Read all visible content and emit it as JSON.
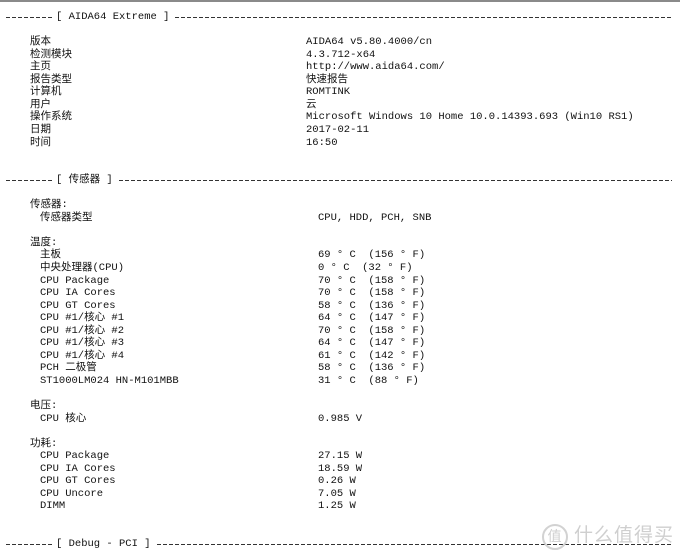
{
  "sections": [
    {
      "title": "[ AIDA64 Extreme ]",
      "row_start": 2,
      "rows": [
        {
          "label": "版本",
          "value": "AIDA64 v5.80.4000/cn"
        },
        {
          "label": "检测模块",
          "value": "4.3.712-x64"
        },
        {
          "label": "主页",
          "value": "http://www.aida64.com/"
        },
        {
          "label": "报告类型",
          "value": "快速报告"
        },
        {
          "label": "计算机",
          "value": "ROMTINK"
        },
        {
          "label": "用户",
          "value": "云"
        },
        {
          "label": "操作系统",
          "value": "Microsoft Windows 10 Home 10.0.14393.693 (Win10 RS1)"
        },
        {
          "label": "日期",
          "value": "2017-02-11"
        },
        {
          "label": "时间",
          "value": "16:50"
        }
      ]
    },
    {
      "title": "[ 传感器 ]",
      "groups": [
        {
          "label": "传感器:",
          "items": [
            {
              "label": "传感器类型",
              "value": "CPU, HDD, PCH, SNB"
            }
          ]
        },
        {
          "label": "温度:",
          "items": [
            {
              "label": "主板",
              "value": "69 ° C  (156 ° F)"
            },
            {
              "label": "中央处理器(CPU)",
              "value": "0 ° C  (32 ° F)"
            },
            {
              "label": "CPU Package",
              "value": "70 ° C  (158 ° F)"
            },
            {
              "label": "CPU IA Cores",
              "value": "70 ° C  (158 ° F)"
            },
            {
              "label": "CPU GT Cores",
              "value": "58 ° C  (136 ° F)"
            },
            {
              "label": "CPU #1/核心 #1",
              "value": "64 ° C  (147 ° F)"
            },
            {
              "label": "CPU #1/核心 #2",
              "value": "70 ° C  (158 ° F)"
            },
            {
              "label": "CPU #1/核心 #3",
              "value": "64 ° C  (147 ° F)"
            },
            {
              "label": "CPU #1/核心 #4",
              "value": "61 ° C  (142 ° F)"
            },
            {
              "label": "PCH 二极管",
              "value": "58 ° C  (136 ° F)"
            },
            {
              "label": "ST1000LM024 HN-M101MBB",
              "value": "31 ° C  (88 ° F)"
            }
          ]
        },
        {
          "label": "电压:",
          "items": [
            {
              "label": "CPU 核心",
              "value": "0.985 V"
            }
          ]
        },
        {
          "label": "功耗:",
          "items": [
            {
              "label": "CPU Package",
              "value": "27.15 W"
            },
            {
              "label": "CPU IA Cores",
              "value": "18.59 W"
            },
            {
              "label": "CPU GT Cores",
              "value": "0.26 W"
            },
            {
              "label": "CPU Uncore",
              "value": "7.05 W"
            },
            {
              "label": "DIMM",
              "value": "1.25 W"
            }
          ]
        }
      ]
    },
    {
      "title": "[ Debug - PCI ]"
    }
  ],
  "watermark": {
    "mark": "值",
    "text": "什么值得买"
  }
}
